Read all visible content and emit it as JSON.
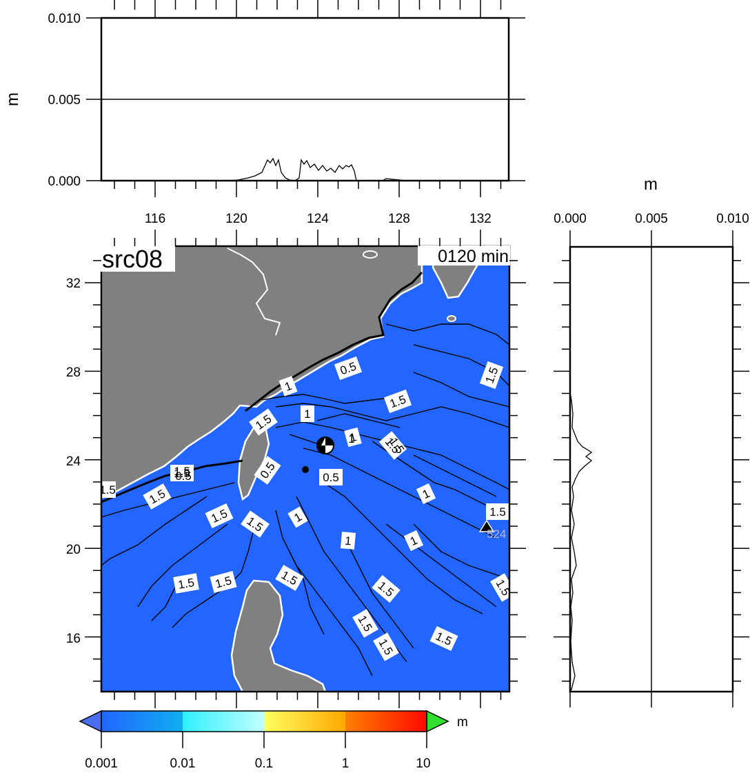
{
  "map": {
    "title": "src08",
    "time_label": "0120 min",
    "x_ticks": [
      "116",
      "120",
      "124",
      "128",
      "132"
    ],
    "y_ticks": [
      "32",
      "28",
      "24",
      "20",
      "16"
    ],
    "ocean_color": "#2266ff",
    "land_color": "#808080",
    "station_label": "524",
    "contour_labels": [
      "0.5",
      "1",
      "1.5",
      "1",
      "1.5",
      "1",
      "0.5",
      "1.5",
      "1",
      "1.5",
      "1.5",
      "0.5",
      "1.5",
      "0.5",
      "1",
      "1.5",
      "1.5",
      "1",
      "1.5",
      "1",
      "1",
      "1.5",
      "1.5",
      "1.5",
      "1.5",
      "1.5",
      "1.5",
      "1.5",
      "1.5",
      "1.5",
      "1.5",
      "1.5"
    ]
  },
  "top_profile": {
    "unit_label": "m",
    "y_ticks": [
      "0.010",
      "0.005",
      "0.000"
    ]
  },
  "side_profile": {
    "unit_label": "m",
    "x_ticks": [
      "0.000",
      "0.005",
      "0.010"
    ]
  },
  "colorbar": {
    "unit_label": "m",
    "tick_labels": [
      "0.001",
      "0.01",
      "0.1",
      "1",
      "10"
    ],
    "colors": [
      "#2060ff",
      "#10b8f0",
      "#40ffff",
      "#b8ffff",
      "#fff040",
      "#ffb000",
      "#ff6000",
      "#ff1000",
      "#30e030"
    ]
  }
}
